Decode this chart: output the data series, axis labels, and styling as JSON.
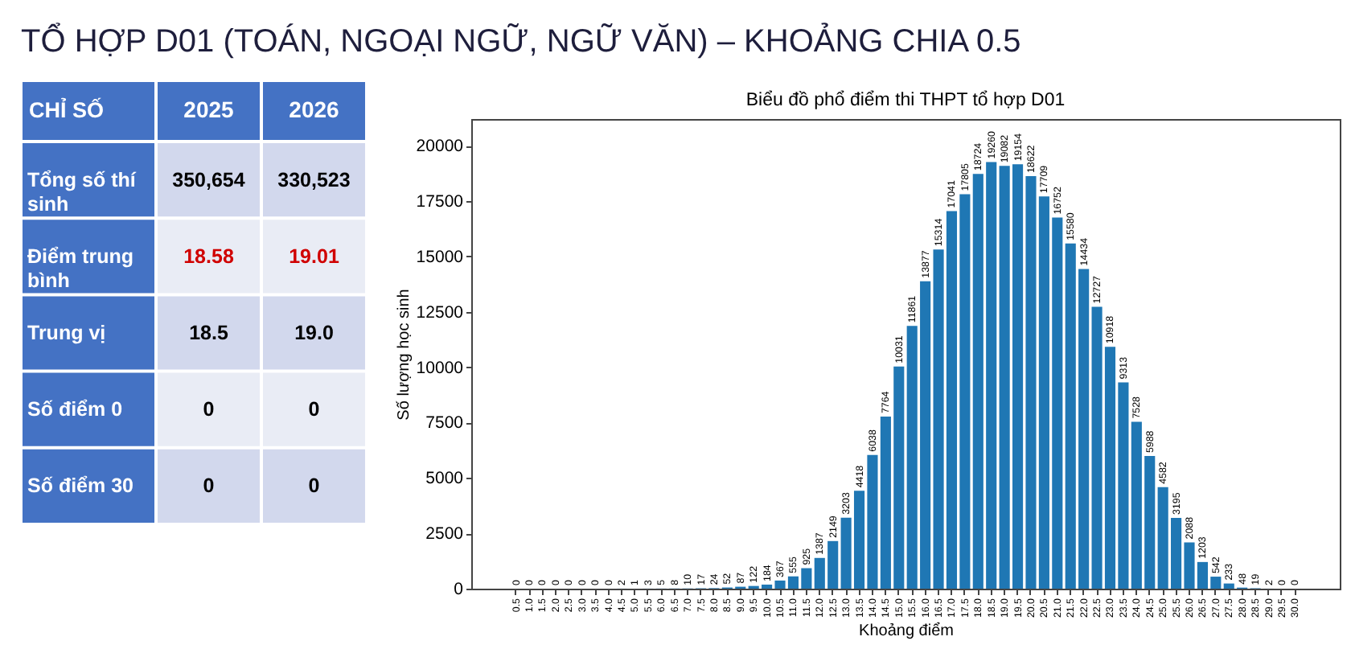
{
  "chart_data": [
    {
      "type": "other",
      "title": "TỔ HỢP D01 (TOÁN, NGOẠI NGỮ, NGỮ VĂN) – KHOẢNG CHIA 0.5",
      "ylabel": "CHỈ SỐ",
      "categories": [
        "2025",
        "2026"
      ],
      "y_categories": [
        "Tổng số thí sinh",
        "Điểm trung bình",
        "Trung vị",
        "Số điểm 0",
        "Số điểm 30"
      ],
      "cell_labels": [
        [
          "350,654",
          "330,523"
        ],
        [
          "18.58",
          "19.01"
        ],
        [
          "18.5",
          "19.0"
        ],
        [
          "0",
          "0"
        ],
        [
          "0",
          "0"
        ]
      ]
    },
    {
      "type": "bar",
      "title": "Biểu đồ phổ điểm thi THPT tổ hợp D01",
      "xlabel": "Khoảng điểm",
      "ylabel": "Số lượng học sinh",
      "categories": [
        "0.5",
        "1.0",
        "1.5",
        "2.0",
        "2.5",
        "3.0",
        "3.5",
        "4.0",
        "4.5",
        "5.0",
        "5.5",
        "6.0",
        "6.5",
        "7.0",
        "7.5",
        "8.0",
        "8.5",
        "9.0",
        "9.5",
        "10.0",
        "10.5",
        "11.0",
        "11.5",
        "12.0",
        "12.5",
        "13.0",
        "13.5",
        "14.0",
        "14.5",
        "15.0",
        "15.5",
        "16.0",
        "16.5",
        "17.0",
        "17.5",
        "18.0",
        "18.5",
        "19.0",
        "19.5",
        "20.0",
        "20.5",
        "21.0",
        "21.5",
        "22.0",
        "22.5",
        "23.0",
        "23.5",
        "24.0",
        "24.5",
        "25.0",
        "25.5",
        "26.0",
        "26.5",
        "27.0",
        "27.5",
        "28.0",
        "28.5",
        "29.0",
        "29.5",
        "30.0"
      ],
      "values": [
        0,
        0,
        0,
        0,
        0,
        0,
        0,
        0,
        2,
        1,
        3,
        5,
        8,
        10,
        17,
        24,
        52,
        87,
        122,
        184,
        367,
        555,
        925,
        1387,
        2149,
        3203,
        4418,
        6038,
        7764,
        10031,
        11861,
        13877,
        15314,
        17041,
        17805,
        18724,
        19260,
        19082,
        19154,
        18622,
        17709,
        16752,
        15580,
        14434,
        12727,
        10918,
        9313,
        7528,
        5988,
        4582,
        3195,
        2088,
        1203,
        542,
        233,
        48,
        19,
        2,
        0,
        0
      ],
      "color": "#1f77b4",
      "ylim": [
        0,
        21200
      ],
      "yticks": [
        0,
        2500,
        5000,
        7500,
        10000,
        12500,
        15000,
        17500,
        20000
      ],
      "data_labels": true
    }
  ]
}
